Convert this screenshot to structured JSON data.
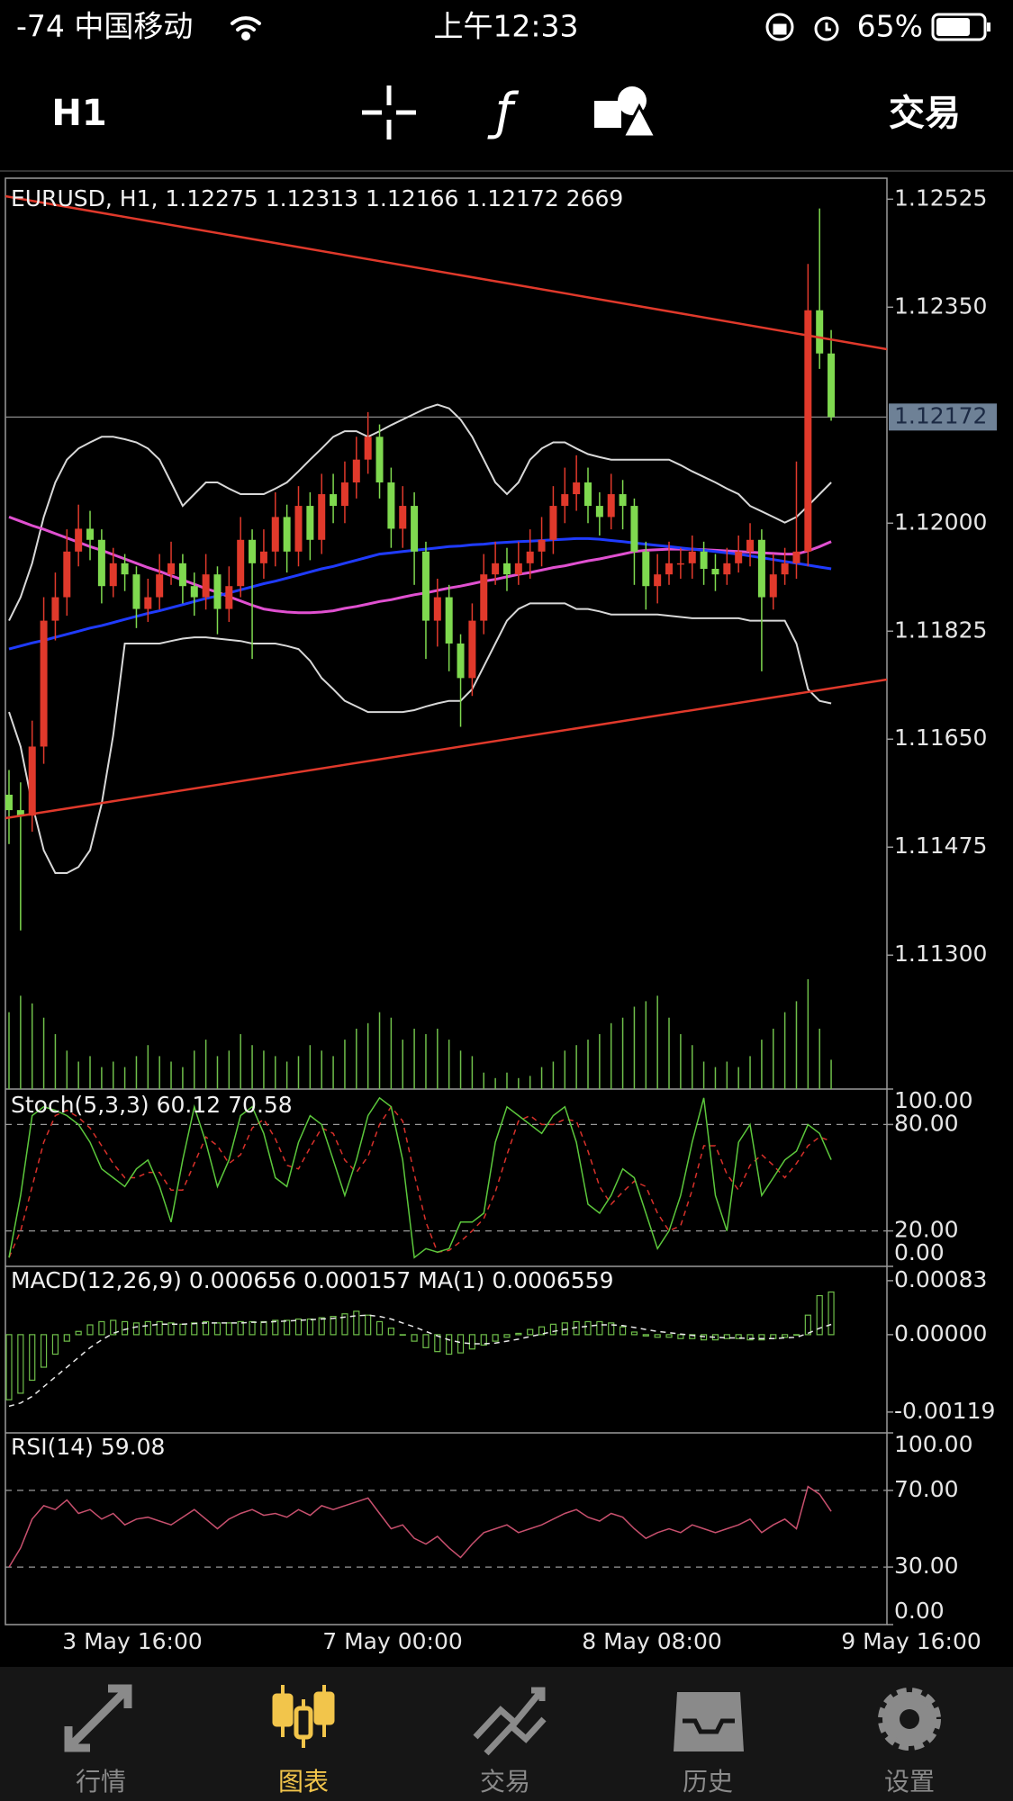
{
  "status_bar": {
    "carrier": "-74 中国移动",
    "time": "上午12:33",
    "battery": "65%"
  },
  "toolbar": {
    "timeframe": "H1",
    "trade": "交易"
  },
  "chart": {
    "type": "candlestick",
    "header": "EURUSD, H1, 1.12275 1.12313 1.12166 1.12172 2669",
    "ylim": [
      1.11083,
      1.12559
    ],
    "yticks": [
      1.12525,
      {
        "value": 1.1235,
        "label": "1.12350"
      },
      {
        "value": 1.12,
        "label": "1.12000"
      },
      1.11825,
      {
        "value": 1.1165,
        "label": "1.11650"
      },
      1.11475,
      {
        "value": 1.113,
        "label": "1.11300"
      }
    ],
    "last_price": 1.12172,
    "up_color": "#e0392b",
    "down_color": "#7fd94f",
    "open": [
      1.1156,
      1.11535,
      1.11526,
      1.11638,
      1.11842,
      1.1188,
      1.11954,
      1.11991,
      1.11973,
      1.11898,
      1.11935,
      1.11917,
      1.11861,
      1.1188,
      1.11917,
      1.11935,
      1.11898,
      1.1188,
      1.11917,
      1.11861,
      1.11898,
      1.11973,
      1.11935,
      1.11954,
      1.1201,
      1.11954,
      1.12028,
      1.11973,
      1.12047,
      1.12028,
      1.12066,
      1.12103,
      1.1214,
      1.12066,
      1.11991,
      1.12028,
      1.11954,
      1.11842,
      1.1188,
      1.11805,
      1.11749,
      1.11842,
      1.11917,
      1.11935,
      1.11917,
      1.11935,
      1.11954,
      1.11973,
      1.12028,
      1.12047,
      1.12066,
      1.12028,
      1.1201,
      1.12047,
      1.12028,
      1.11954,
      1.11898,
      1.11917,
      1.11935,
      1.11935,
      1.11954,
      1.11926,
      1.11917,
      1.11935,
      1.11954,
      1.11973,
      1.1188,
      1.11917,
      1.11935,
      1.11954,
      1.12345,
      1.12275
    ],
    "high": [
      1.116,
      1.1158,
      1.1168,
      1.1188,
      1.1192,
      1.1199,
      1.1203,
      1.1202,
      1.1199,
      1.1196,
      1.1195,
      1.1193,
      1.1191,
      1.1195,
      1.1197,
      1.1195,
      1.1192,
      1.1195,
      1.1193,
      1.1193,
      1.1201,
      1.1199,
      1.1199,
      1.1205,
      1.1203,
      1.1206,
      1.1205,
      1.1208,
      1.1208,
      1.121,
      1.1214,
      1.1218,
      1.1216,
      1.1209,
      1.1206,
      1.1205,
      1.1197,
      1.1191,
      1.119,
      1.1182,
      1.1187,
      1.1195,
      1.1197,
      1.1196,
      1.1197,
      1.1199,
      1.1201,
      1.1206,
      1.1209,
      1.1211,
      1.1209,
      1.1205,
      1.1208,
      1.1207,
      1.1204,
      1.1197,
      1.1195,
      1.1197,
      1.1196,
      1.1198,
      1.1197,
      1.1195,
      1.1196,
      1.1198,
      1.12,
      1.1199,
      1.1195,
      1.1196,
      1.121,
      1.1242,
      1.1251,
      1.12313
    ],
    "low": [
      1.1148,
      1.1134,
      1.115,
      1.1161,
      1.1181,
      1.1185,
      1.1193,
      1.1194,
      1.1187,
      1.1188,
      1.1189,
      1.1183,
      1.1184,
      1.1186,
      1.119,
      1.1187,
      1.1185,
      1.1186,
      1.1182,
      1.1184,
      1.1188,
      1.1178,
      1.1191,
      1.1193,
      1.1192,
      1.1193,
      1.1194,
      1.1195,
      1.12,
      1.12,
      1.1204,
      1.1208,
      1.1204,
      1.1196,
      1.1196,
      1.119,
      1.1178,
      1.118,
      1.1176,
      1.1167,
      1.1172,
      1.1182,
      1.119,
      1.1189,
      1.119,
      1.1191,
      1.1193,
      1.1195,
      1.12,
      1.1202,
      1.12,
      1.1198,
      1.1199,
      1.1199,
      1.119,
      1.1186,
      1.1187,
      1.119,
      1.1191,
      1.1191,
      1.119,
      1.1189,
      1.119,
      1.1192,
      1.1193,
      1.1176,
      1.1186,
      1.119,
      1.1191,
      1.1193,
      1.1225,
      1.12166
    ],
    "close": [
      1.11535,
      1.11526,
      1.11638,
      1.11842,
      1.1188,
      1.11954,
      1.11991,
      1.11973,
      1.11898,
      1.11935,
      1.11917,
      1.11861,
      1.1188,
      1.11917,
      1.11935,
      1.11898,
      1.1188,
      1.11917,
      1.11861,
      1.11898,
      1.11973,
      1.11935,
      1.11954,
      1.1201,
      1.11954,
      1.12028,
      1.11973,
      1.12047,
      1.12028,
      1.12066,
      1.12103,
      1.1214,
      1.12066,
      1.11991,
      1.12028,
      1.11954,
      1.11842,
      1.1188,
      1.11805,
      1.11749,
      1.11842,
      1.11917,
      1.11935,
      1.11917,
      1.11935,
      1.11954,
      1.11973,
      1.12028,
      1.12047,
      1.12066,
      1.12028,
      1.1201,
      1.12047,
      1.12028,
      1.11954,
      1.11898,
      1.11917,
      1.11935,
      1.11935,
      1.11954,
      1.11926,
      1.11917,
      1.11935,
      1.11954,
      1.11973,
      1.1188,
      1.11917,
      1.11935,
      1.11954,
      1.12345,
      1.12275,
      1.12172
    ],
    "volume": [
      7000,
      8500,
      7800,
      6500,
      5000,
      3500,
      2500,
      3000,
      2000,
      2500,
      2000,
      3000,
      4000,
      3000,
      2500,
      2000,
      3500,
      4500,
      3000,
      3500,
      5000,
      4000,
      3500,
      3000,
      2500,
      3000,
      4000,
      3500,
      3000,
      4500,
      5500,
      6000,
      7000,
      6500,
      4500,
      5500,
      5000,
      5500,
      4500,
      3500,
      3000,
      1500,
      1000,
      1500,
      1000,
      1200,
      2000,
      2500,
      3500,
      4000,
      4500,
      5000,
      6000,
      6500,
      7500,
      8000,
      8500,
      6500,
      5000,
      4000,
      2500,
      2000,
      2500,
      2000,
      3000,
      4500,
      5500,
      7000,
      8000,
      10000,
      5500,
      2669
    ],
    "volume_color": "#6fbf4a",
    "bands_color": "#d8d8d8",
    "bands_upper": [
      1.11842,
      1.1188,
      1.11935,
      1.1201,
      1.12066,
      1.12103,
      1.12121,
      1.12131,
      1.1214,
      1.1214,
      1.12136,
      1.12131,
      1.12121,
      1.12103,
      1.12066,
      1.12028,
      1.12047,
      1.12066,
      1.12066,
      1.12056,
      1.12047,
      1.12047,
      1.12047,
      1.12056,
      1.12066,
      1.12084,
      1.12103,
      1.12121,
      1.1214,
      1.12149,
      1.12149,
      1.1214,
      1.12149,
      1.12159,
      1.12168,
      1.12177,
      1.12186,
      1.12192,
      1.12186,
      1.12168,
      1.1214,
      1.12103,
      1.12066,
      1.12047,
      1.12066,
      1.12103,
      1.12121,
      1.12131,
      1.12131,
      1.12121,
      1.12112,
      1.12107,
      1.12103,
      1.12103,
      1.12103,
      1.12103,
      1.12103,
      1.12103,
      1.12094,
      1.12084,
      1.12075,
      1.12066,
      1.12056,
      1.12047,
      1.12028,
      1.12019,
      1.1201,
      1.12001,
      1.1201,
      1.12028,
      1.12047,
      1.12066
    ],
    "bands_lower": [
      1.11694,
      1.11638,
      1.11545,
      1.1147,
      1.11433,
      1.11433,
      1.11443,
      1.1147,
      1.11545,
      1.11656,
      1.11805,
      1.11805,
      1.11805,
      1.11805,
      1.11809,
      1.11813,
      1.11815,
      1.11815,
      1.11813,
      1.11811,
      1.11809,
      1.11805,
      1.11805,
      1.11805,
      1.11801,
      1.11796,
      1.11777,
      1.11749,
      1.11731,
      1.11712,
      1.11703,
      1.11694,
      1.11694,
      1.11694,
      1.11694,
      1.11697,
      1.11703,
      1.11708,
      1.11712,
      1.11712,
      1.11731,
      1.11768,
      1.11805,
      1.11842,
      1.11861,
      1.1187,
      1.1187,
      1.1187,
      1.1187,
      1.11861,
      1.11861,
      1.11857,
      1.11852,
      1.11852,
      1.11852,
      1.11852,
      1.11852,
      1.1185,
      1.11848,
      1.11846,
      1.11846,
      1.11846,
      1.11846,
      1.11846,
      1.11842,
      1.11842,
      1.11842,
      1.11842,
      1.11805,
      1.11731,
      1.11712,
      1.11708
    ],
    "ma_slow_color": "#1f3bff",
    "ma_slow": [
      1.11796,
      1.11801,
      1.11806,
      1.1181,
      1.11815,
      1.1182,
      1.11825,
      1.1183,
      1.11834,
      1.11839,
      1.11844,
      1.11849,
      1.11854,
      1.11858,
      1.11863,
      1.11868,
      1.11873,
      1.11878,
      1.11882,
      1.11887,
      1.11892,
      1.11897,
      1.11902,
      1.11906,
      1.11911,
      1.11916,
      1.11921,
      1.11926,
      1.1193,
      1.11935,
      1.1194,
      1.11945,
      1.1195,
      1.11952,
      1.11954,
      1.11956,
      1.11958,
      1.1196,
      1.11962,
      1.11963,
      1.11965,
      1.11966,
      1.11968,
      1.11969,
      1.1197,
      1.11971,
      1.11972,
      1.11973,
      1.11974,
      1.11975,
      1.11975,
      1.11974,
      1.11972,
      1.1197,
      1.11968,
      1.11966,
      1.11964,
      1.11962,
      1.1196,
      1.11958,
      1.11956,
      1.11954,
      1.11952,
      1.1195,
      1.11947,
      1.11944,
      1.11941,
      1.11938,
      1.11935,
      1.11932,
      1.11929,
      1.11926
    ],
    "ma_mid_color": "#e050d0",
    "ma_mid": [
      1.1201,
      1.12003,
      1.11996,
      1.1199,
      1.11983,
      1.11976,
      1.11969,
      1.11962,
      1.11956,
      1.11949,
      1.11942,
      1.11935,
      1.11928,
      1.11922,
      1.11915,
      1.11908,
      1.11901,
      1.11894,
      1.11888,
      1.11881,
      1.11874,
      1.11867,
      1.11861,
      1.11858,
      1.11856,
      1.11855,
      1.11855,
      1.11856,
      1.11858,
      1.11862,
      1.11865,
      1.11869,
      1.11873,
      1.11876,
      1.1188,
      1.11884,
      1.11887,
      1.11891,
      1.11895,
      1.11898,
      1.11902,
      1.11906,
      1.11909,
      1.11913,
      1.11917,
      1.1192,
      1.11924,
      1.11928,
      1.11931,
      1.11935,
      1.11939,
      1.11942,
      1.11946,
      1.1195,
      1.11954,
      1.11956,
      1.11957,
      1.11958,
      1.11958,
      1.11958,
      1.11957,
      1.11956,
      1.11955,
      1.11954,
      1.11953,
      1.11952,
      1.11951,
      1.1195,
      1.1195,
      1.11955,
      1.11962,
      1.1197
    ]
  },
  "stoch": {
    "header": "Stoch(5,3,3) 60.12 70.58",
    "ylim": [
      0,
      100
    ],
    "yticks": [
      {
        "value": 100,
        "label": "100.00"
      },
      {
        "value": 80,
        "label": "80.00"
      },
      {
        "value": 20,
        "label": "20.00"
      },
      {
        "value": 0,
        "label": "0.00"
      }
    ],
    "level_lines": true,
    "main_color": "#5cc83c",
    "signal_color": "#d8302a",
    "main": [
      5,
      40,
      85,
      90,
      88,
      85,
      80,
      70,
      55,
      50,
      45,
      55,
      60,
      45,
      25,
      60,
      90,
      70,
      45,
      60,
      85,
      90,
      75,
      50,
      45,
      70,
      85,
      80,
      60,
      40,
      60,
      85,
      95,
      90,
      60,
      5,
      10,
      8,
      10,
      25,
      25,
      30,
      70,
      90,
      85,
      80,
      75,
      85,
      90,
      70,
      35,
      30,
      40,
      55,
      50,
      30,
      10,
      20,
      40,
      70,
      95,
      40,
      20,
      70,
      80,
      40,
      50,
      60,
      65,
      80,
      75,
      60.12
    ],
    "signal": [
      5,
      20,
      45,
      70,
      85,
      88,
      84,
      78,
      68,
      58,
      50,
      50,
      53,
      53,
      43,
      43,
      58,
      73,
      68,
      58,
      63,
      78,
      83,
      72,
      57,
      55,
      67,
      78,
      75,
      60,
      53,
      62,
      80,
      90,
      82,
      52,
      25,
      8,
      9,
      14,
      20,
      27,
      42,
      63,
      82,
      85,
      80,
      80,
      83,
      82,
      65,
      45,
      35,
      42,
      48,
      45,
      30,
      20,
      23,
      43,
      68,
      68,
      52,
      43,
      57,
      63,
      57,
      50,
      58,
      68,
      73,
      70.58
    ]
  },
  "macd": {
    "header": "MACD(12,26,9) 0.000656 0.000157 MA(1) 0.0006559",
    "ylim": [
      -0.00151,
      0.00105
    ],
    "yticks": [
      0.00083,
      {
        "value": 0,
        "label": "0.00000"
      },
      -0.00119
    ],
    "level_lines": false,
    "main_color": "#6fbf4a",
    "signal_color": "#e8e8e8",
    "main": [
      -0.001,
      -0.0009,
      -0.0007,
      -0.0005,
      -0.0003,
      -0.0001,
      5e-05,
      0.00015,
      0.0002,
      0.00022,
      0.0002,
      0.00018,
      0.0002,
      0.0002,
      0.00018,
      0.00016,
      0.00018,
      0.0002,
      0.00018,
      0.00018,
      0.0002,
      0.0002,
      0.0002,
      0.00022,
      0.00022,
      0.00024,
      0.00024,
      0.00026,
      0.00028,
      0.00032,
      0.00036,
      0.0003,
      0.0002,
      0.0001,
      0.0,
      -0.0001,
      -0.0002,
      -0.00026,
      -0.0003,
      -0.00028,
      -0.00022,
      -0.00016,
      -0.0001,
      -4e-05,
      2e-05,
      8e-05,
      0.00012,
      0.00016,
      0.00018,
      0.0002,
      0.0002,
      0.0002,
      0.00018,
      0.00012,
      4e-05,
      -2e-05,
      -4e-05,
      -4e-05,
      -6e-05,
      -6e-05,
      -8e-05,
      -8e-05,
      -6e-05,
      -6e-05,
      -8e-05,
      -8e-05,
      -6e-05,
      -4e-05,
      0.0,
      0.0003,
      0.0006,
      0.000656
    ],
    "signal": [
      -0.0011,
      -0.00105,
      -0.00095,
      -0.0008,
      -0.00065,
      -0.0005,
      -0.00035,
      -0.0002,
      -8e-05,
      2e-05,
      8e-05,
      0.00012,
      0.00014,
      0.00016,
      0.00016,
      0.00016,
      0.00017,
      0.00018,
      0.00018,
      0.00018,
      0.00018,
      0.00019,
      0.00019,
      0.0002,
      0.00021,
      0.00022,
      0.00023,
      0.00024,
      0.00025,
      0.00027,
      0.00029,
      0.0003,
      0.00028,
      0.00024,
      0.00018,
      0.00012,
      5e-05,
      -2e-05,
      -8e-05,
      -0.00012,
      -0.00014,
      -0.00014,
      -0.00013,
      -0.0001,
      -7e-05,
      -3e-05,
      1e-05,
      5e-05,
      8e-05,
      0.00011,
      0.00013,
      0.00015,
      0.00015,
      0.00014,
      0.00011,
      8e-05,
      5e-05,
      3e-05,
      1e-05,
      -1e-05,
      -3e-05,
      -4e-05,
      -5e-05,
      -5e-05,
      -6e-05,
      -6e-05,
      -6e-05,
      -5e-05,
      -4e-05,
      2e-05,
      0.0001,
      0.000157
    ]
  },
  "rsi": {
    "header": "RSI(14) 59.08",
    "ylim": [
      0,
      100
    ],
    "yticks": [
      {
        "value": 100,
        "label": "100.00"
      },
      {
        "value": 70,
        "label": "70.00"
      },
      {
        "value": 30,
        "label": "30.00"
      },
      {
        "value": 0,
        "label": "0.00"
      }
    ],
    "level_lines": true,
    "main_color": "#c8506e",
    "main": [
      30,
      40,
      55,
      62,
      60,
      65,
      58,
      60,
      55,
      58,
      52,
      55,
      56,
      54,
      52,
      56,
      60,
      55,
      50,
      55,
      58,
      60,
      57,
      58,
      56,
      60,
      57,
      62,
      60,
      62,
      64,
      66,
      58,
      50,
      52,
      45,
      42,
      46,
      40,
      35,
      42,
      48,
      50,
      52,
      48,
      50,
      52,
      55,
      58,
      60,
      56,
      54,
      58,
      56,
      50,
      45,
      48,
      50,
      48,
      52,
      50,
      48,
      50,
      52,
      55,
      48,
      52,
      55,
      50,
      72,
      68,
      59.08
    ]
  },
  "x_labels": [
    "3 May 16:00",
    "7 May 00:00",
    "8 May 08:00",
    "9 May 16:00"
  ],
  "tabs": [
    "行情",
    "图表",
    "交易",
    "历史",
    "设置"
  ]
}
